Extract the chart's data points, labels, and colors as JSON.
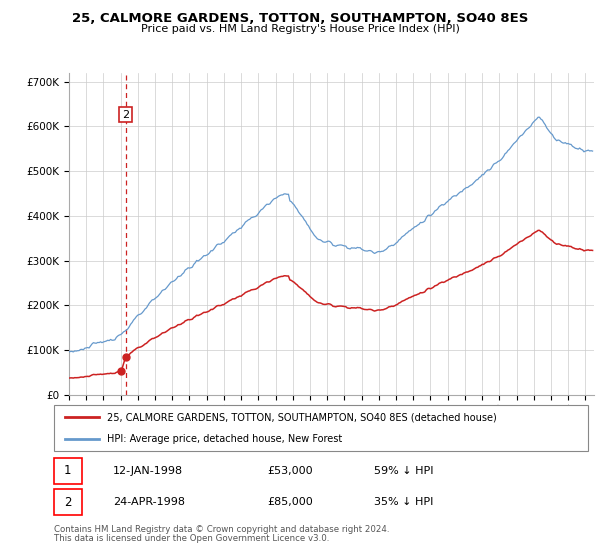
{
  "title": "25, CALMORE GARDENS, TOTTON, SOUTHAMPTON, SO40 8ES",
  "subtitle": "Price paid vs. HM Land Registry's House Price Index (HPI)",
  "legend_line1": "25, CALMORE GARDENS, TOTTON, SOUTHAMPTON, SO40 8ES (detached house)",
  "legend_line2": "HPI: Average price, detached house, New Forest",
  "transaction1_date": "12-JAN-1998",
  "transaction1_price": "£53,000",
  "transaction1_hpi": "59% ↓ HPI",
  "transaction2_date": "24-APR-1998",
  "transaction2_price": "£85,000",
  "transaction2_hpi": "35% ↓ HPI",
  "footer": "Contains HM Land Registry data © Crown copyright and database right 2024.\nThis data is licensed under the Open Government Licence v3.0.",
  "hpi_color": "#6699cc",
  "price_color": "#cc2222",
  "vline_color": "#cc2222",
  "background_color": "#ffffff",
  "grid_color": "#cccccc",
  "ylim": [
    0,
    720000
  ],
  "yticks": [
    0,
    100000,
    200000,
    300000,
    400000,
    500000,
    600000,
    700000
  ],
  "sale1_year": 1998.04,
  "sale1_price": 53000,
  "sale2_year": 1998.29,
  "sale2_price": 85000,
  "xmin": 1995.0,
  "xmax": 2025.5
}
